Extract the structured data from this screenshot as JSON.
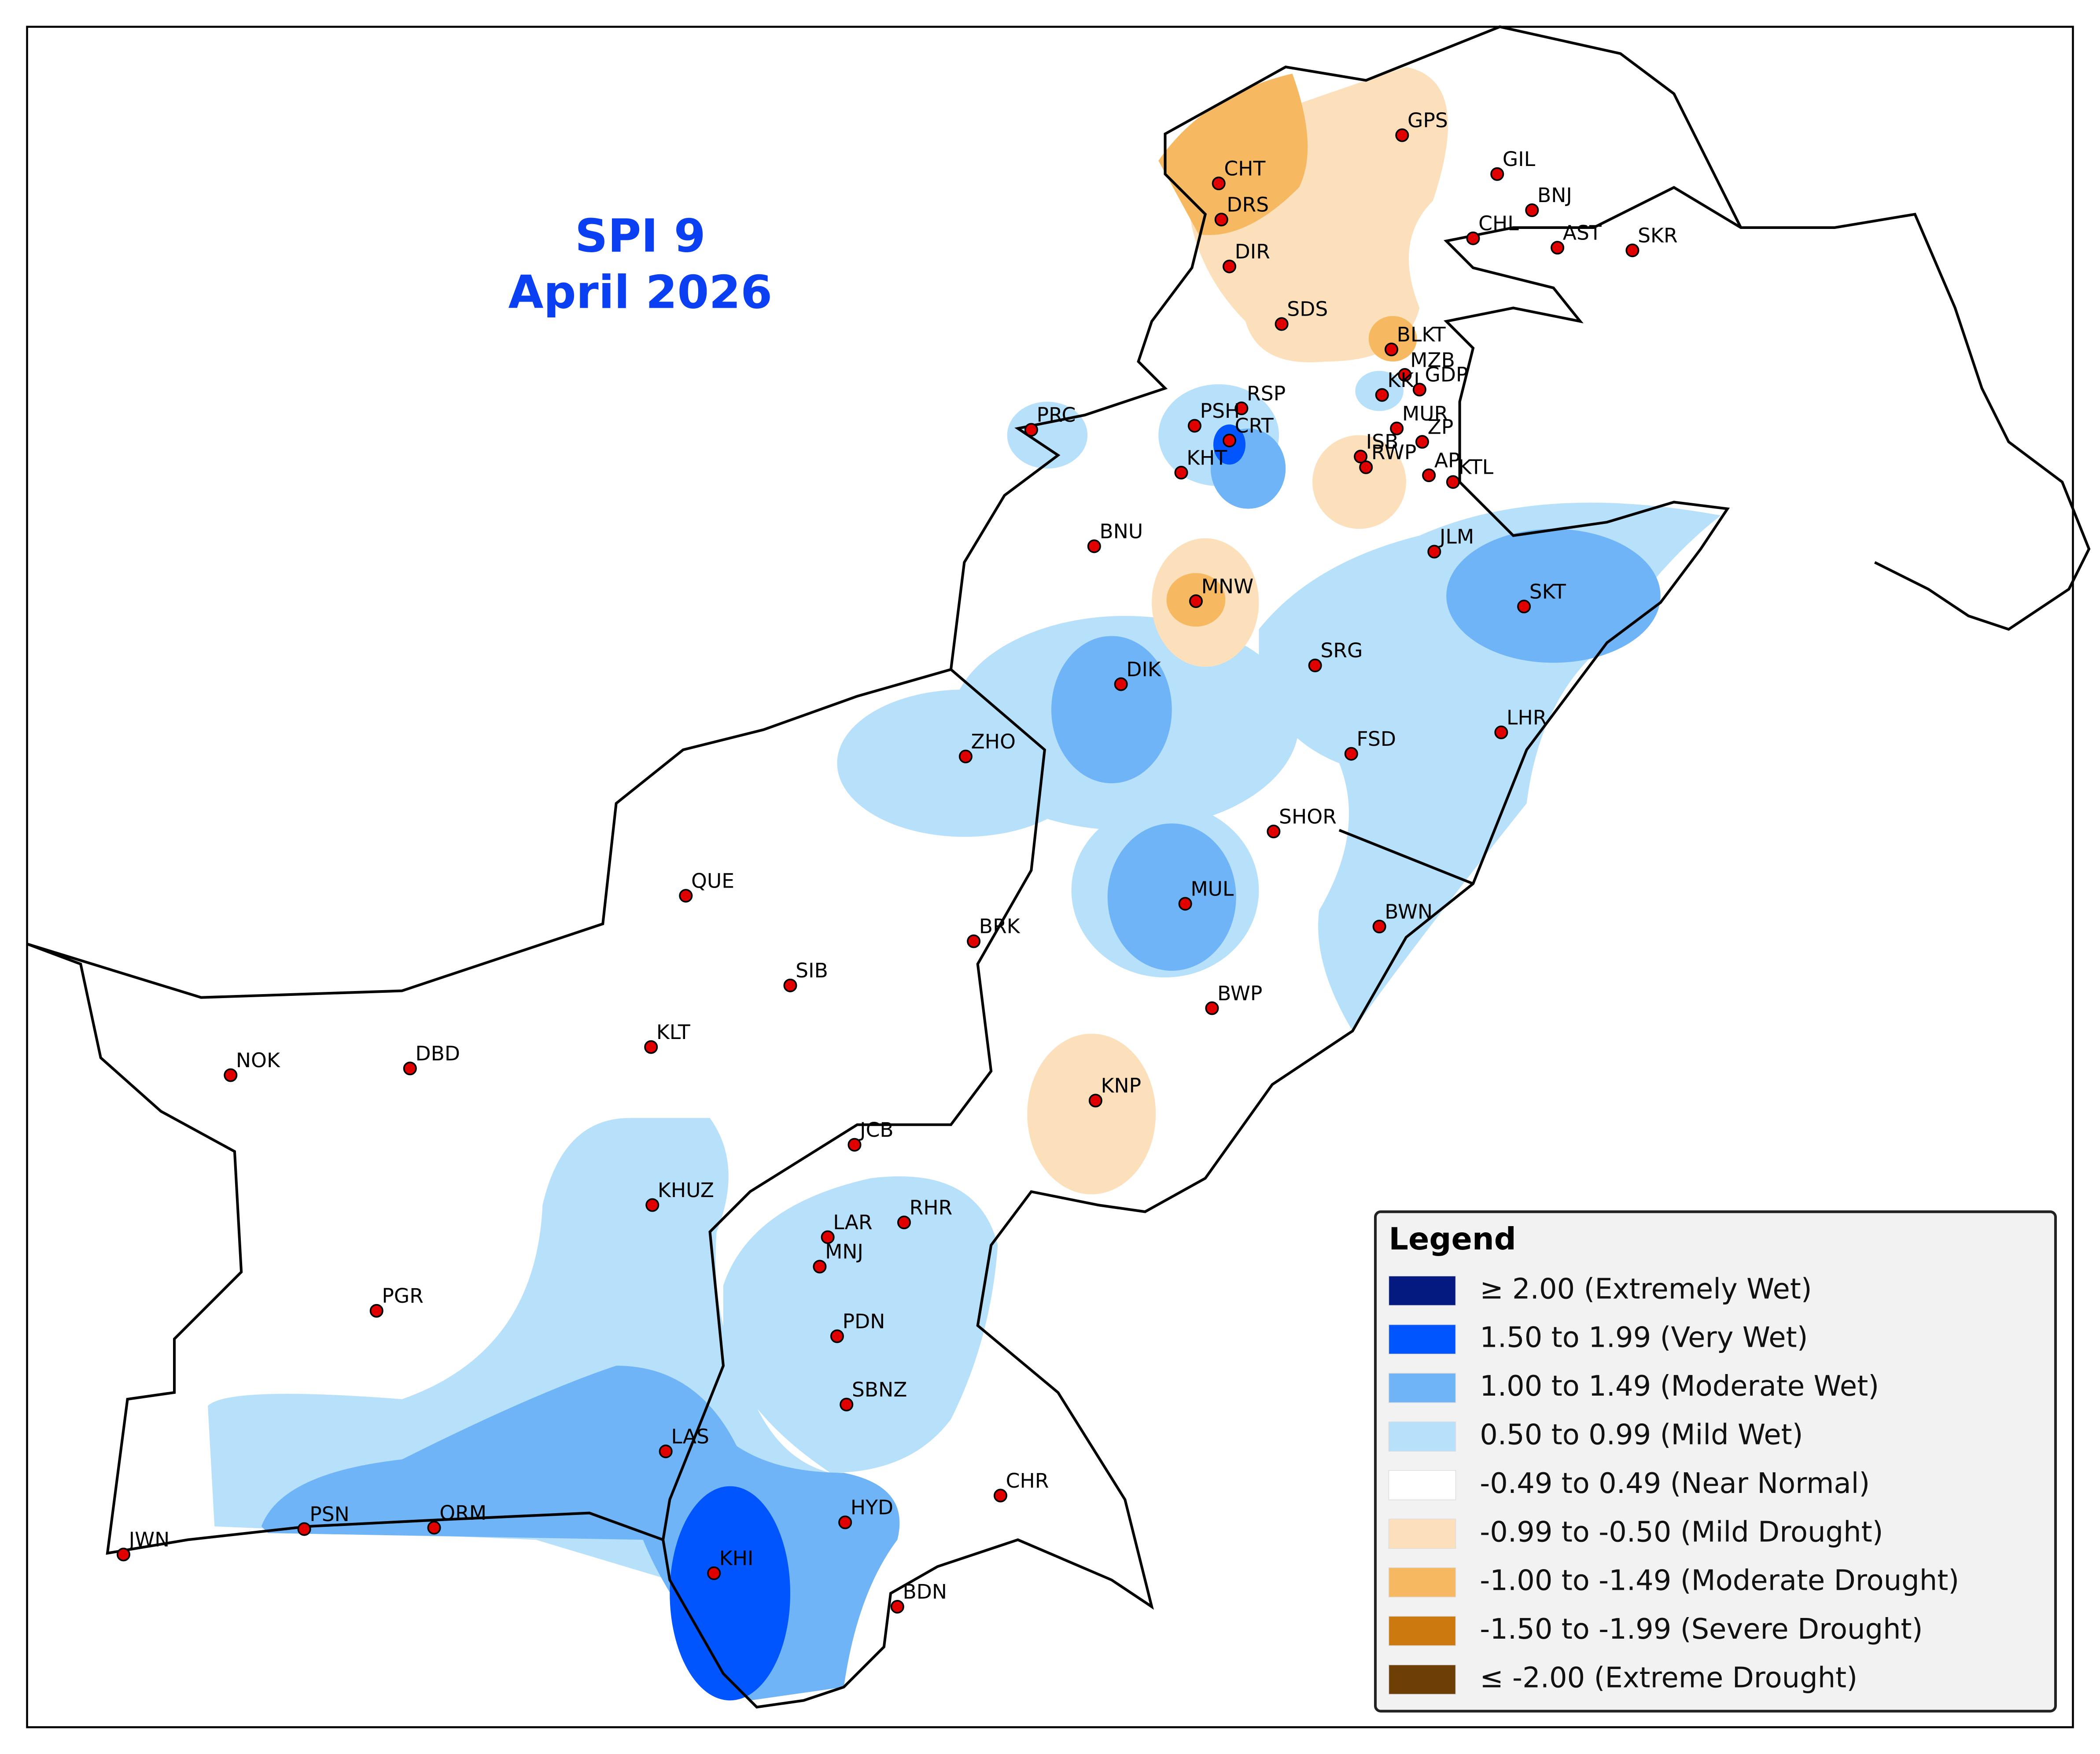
{
  "title": {
    "line1": "SPI 9",
    "line2": "April 2026"
  },
  "legend": {
    "title": "Legend",
    "items": [
      {
        "label": "≥ 2.00 (Extremely Wet)",
        "color": "#041a80"
      },
      {
        "label": "1.50 to 1.99 (Very Wet)",
        "color": "#0055ff"
      },
      {
        "label": "1.00 to 1.49 (Moderate Wet)",
        "color": "#6eb4f7"
      },
      {
        "label": "0.50 to 0.99 (Mild Wet)",
        "color": "#b7e0fb"
      },
      {
        "label": "-0.49 to 0.49 (Near Normal)",
        "color": "#ffffff"
      },
      {
        "label": "-0.99 to -0.50 (Mild Drought)",
        "color": "#fce0bb"
      },
      {
        "label": "-1.00 to -1.49 (Moderate Drought)",
        "color": "#f6b962"
      },
      {
        "label": "-1.50 to -1.99 (Severe Drought)",
        "color": "#cc7a10"
      },
      {
        "label": "≤ -2.00 (Extreme Drought)",
        "color": "#6e3e07"
      }
    ]
  },
  "stations": [
    "GPS",
    "GIL",
    "CHT",
    "BNJ",
    "DRS",
    "CHL",
    "AST",
    "SKR",
    "DIR",
    "SDS",
    "BLKT",
    "MZB",
    "KKI",
    "GDP",
    "RSP",
    "MUR",
    "PRC",
    "PSH",
    "CRT",
    "ISB",
    "ZP",
    "RWP",
    "AP",
    "KTL",
    "KHT",
    "BNU",
    "JLM",
    "MNW",
    "SKT",
    "SRG",
    "DIK",
    "LHR",
    "ZHO",
    "FSD",
    "SHOR",
    "QUE",
    "MUL",
    "BWN",
    "BRK",
    "SIB",
    "BWP",
    "KLT",
    "NOK",
    "DBD",
    "KNP",
    "JCB",
    "KHUZ",
    "RHR",
    "LAR",
    "MNJ",
    "PGR",
    "PDN",
    "SBNZ",
    "LAS",
    "CHR",
    "HYD",
    "PSN",
    "ORM",
    "JWN",
    "KHI",
    "BDN"
  ]
}
